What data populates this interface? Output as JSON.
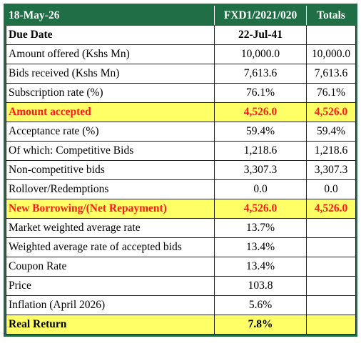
{
  "table": {
    "header": [
      "18-May-26",
      "FXD1/2021/020",
      "Totals"
    ],
    "rows": [
      [
        "Due Date",
        "22-Jul-41"
      ],
      [
        "Amount offered (Kshs Mn)",
        "10,000.0",
        "10,000.0"
      ],
      [
        "Bids received (Kshs Mn)",
        "7,613.6",
        "7,613.6"
      ],
      [
        "Subscription rate (%)",
        "76.1%",
        "76.1%"
      ],
      [
        "Amount accepted",
        "4,526.0",
        "4,526.0"
      ],
      [
        "Acceptance rate (%)",
        "59.4%",
        "59.4%"
      ],
      [
        "Of which: Competitive Bids",
        "1,218.6",
        "1,218.6"
      ],
      [
        "Non-competitive bids",
        "3,307.3",
        "3,307.3"
      ],
      [
        "Rollover/Redemptions",
        "0.0",
        "0.0"
      ],
      [
        "New Borrowing/(Net Repayment)",
        "4,526.0",
        "4,526.0"
      ],
      [
        "Market weighted average rate",
        "13.7%"
      ],
      [
        "Weighted average rate of accepted bids",
        "13.4%"
      ],
      [
        "Coupon Rate",
        "13.4%"
      ],
      [
        "Price",
        "103.8"
      ],
      [
        "Inflation (April 2026)",
        "5.6%"
      ],
      [
        "Real Return",
        "7.8%"
      ]
    ]
  }
}
